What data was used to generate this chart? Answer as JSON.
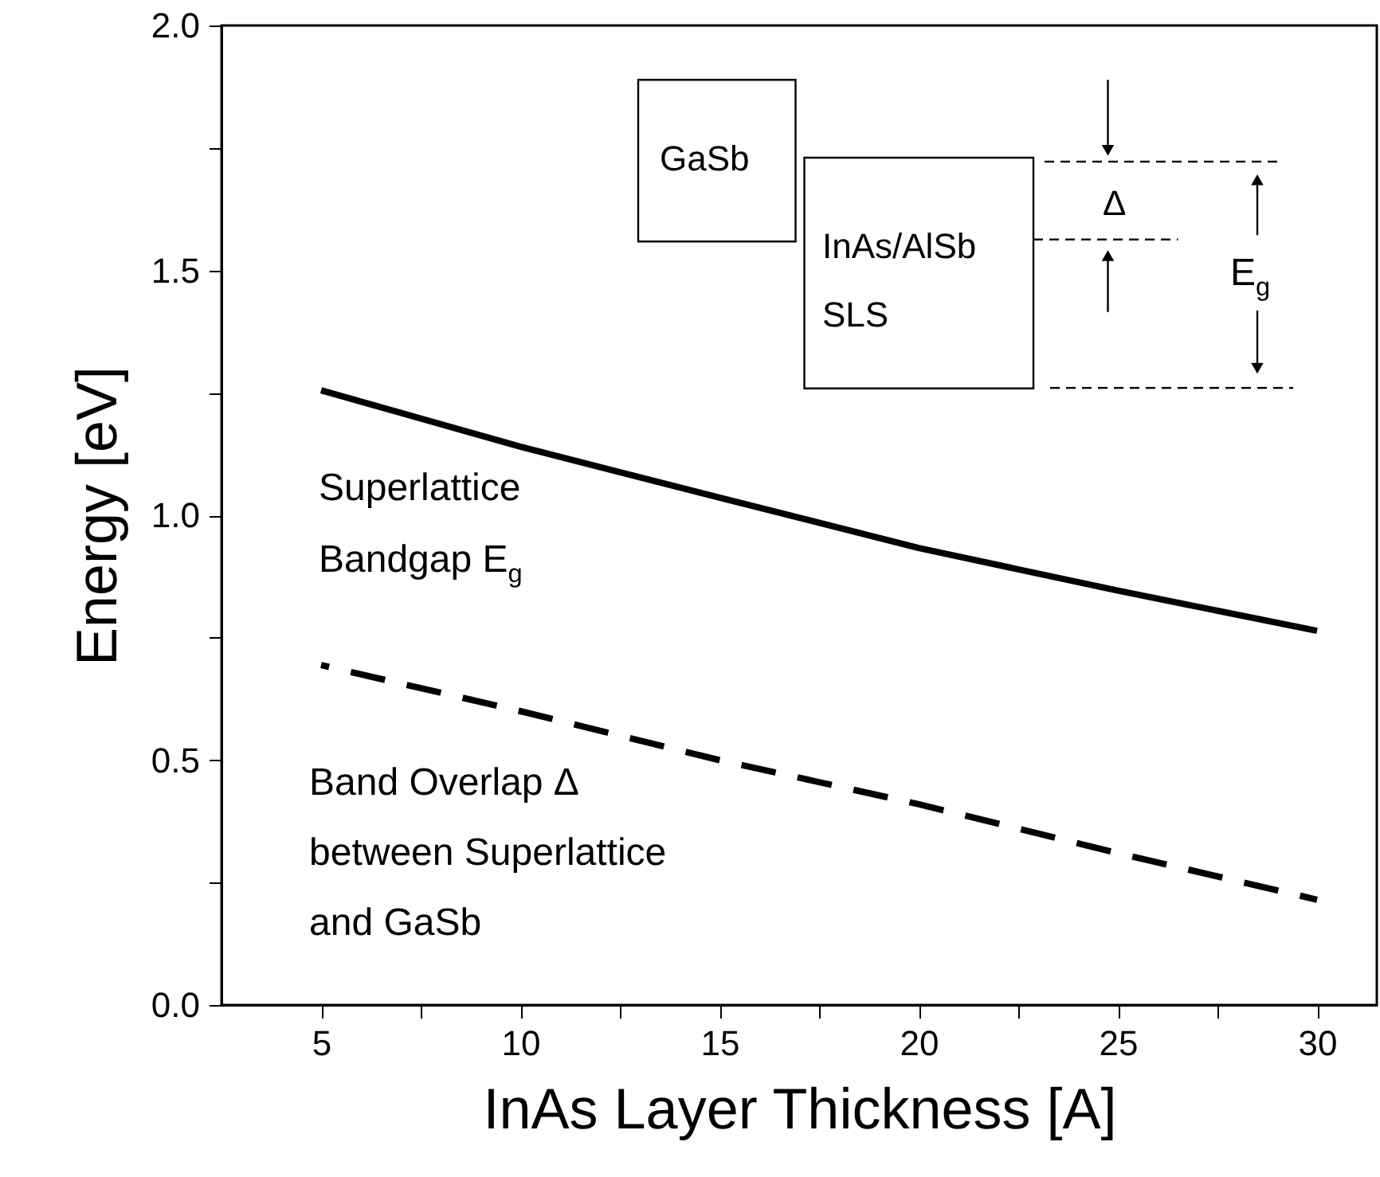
{
  "chart_data": {
    "type": "line",
    "xlabel": "InAs Layer Thickness [A]",
    "ylabel": "Energy [eV]",
    "x": [
      5,
      10,
      15,
      20,
      25,
      30
    ],
    "series": [
      {
        "color": "#000000",
        "line_style": "solid",
        "values": [
          1.255,
          1.14,
          1.036,
          0.933,
          0.846,
          0.764
        ]
      },
      {
        "color": "#000000",
        "line_style": "dashed",
        "values": [
          0.694,
          0.6,
          0.5,
          0.41,
          0.31,
          0.215
        ]
      }
    ],
    "xlim": [
      2.5,
      31.5
    ],
    "xticks": [
      5,
      {
        "value": 7.5,
        "label": null
      },
      10,
      {
        "value": 12.5,
        "label": null
      },
      15,
      {
        "value": 17.5,
        "label": null
      },
      20,
      {
        "value": 22.5,
        "label": null
      },
      25,
      {
        "value": 27.5,
        "label": null
      },
      30
    ],
    "ylim": [
      0,
      2
    ],
    "yticks": [
      {
        "value": 0,
        "label": "0.0"
      },
      {
        "value": 0.25,
        "label": null
      },
      0.5,
      {
        "value": 0.75,
        "label": null
      },
      {
        "value": 1,
        "label": "1.0"
      },
      {
        "value": 1.25,
        "label": null
      },
      1.5,
      {
        "value": 1.75,
        "label": null
      },
      {
        "value": 2,
        "label": "2.0"
      }
    ],
    "grid": false,
    "marker": "none",
    "annotations": [
      "Superlattice\nBandgap E$_{g}$",
      "Band Overlap Δ\nbetween Superlattice\nand GaSb",
      "GaSb",
      "InAs/AlSb\nSLS",
      "Δ",
      "E$_{g}$"
    ]
  }
}
